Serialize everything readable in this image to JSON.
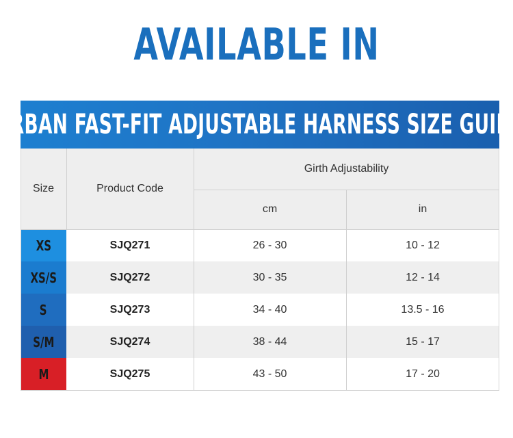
{
  "headline": "AVAILABLE IN",
  "guide_title": "URBAN FAST-FIT ADJUSTABLE HARNESS SIZE GUIDE",
  "headers": {
    "size": "Size",
    "product_code": "Product Code",
    "girth": "Girth Adjustability",
    "cm": "cm",
    "in": "in"
  },
  "rows": [
    {
      "size": "XS",
      "code": "SJQ271",
      "cm": "26 - 30",
      "in": "10 - 12",
      "color": "#1e8fe0"
    },
    {
      "size": "XS/S",
      "code": "SJQ272",
      "cm": "30 - 35",
      "in": "12 - 14",
      "color": "#1b7ccf"
    },
    {
      "size": "S",
      "code": "SJQ273",
      "cm": "34 - 40",
      "in": "13.5 - 16",
      "color": "#1f6dbf"
    },
    {
      "size": "S/M",
      "code": "SJQ274",
      "cm": "38 - 44",
      "in": "15 - 17",
      "color": "#1f5fae"
    },
    {
      "size": "M",
      "code": "SJQ275",
      "cm": "43 - 50",
      "in": "17 - 20",
      "color": "#d81f26"
    }
  ]
}
